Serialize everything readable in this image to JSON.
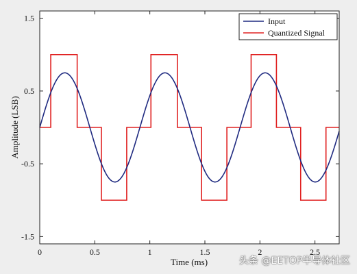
{
  "chart_data": {
    "type": "line",
    "title": "",
    "xlabel": "Time (ms)",
    "ylabel": "Amplitude (LSB)",
    "xlim": [
      0,
      2.72
    ],
    "ylim": [
      -1.6,
      1.6
    ],
    "x_ticks": [
      0,
      0.5,
      1,
      1.5,
      2,
      2.5
    ],
    "x_tick_labels": [
      "0",
      "0.5",
      "1",
      "1.5",
      "2",
      "2.5"
    ],
    "y_ticks": [
      1.5,
      0.5,
      -0.5,
      -1.5
    ],
    "y_tick_labels": [
      "1.5",
      "0.5",
      "-0.5",
      "-1.5"
    ],
    "grid": false,
    "legend_position": "top-right",
    "series": [
      {
        "name": "Input",
        "color": "#1f2a80",
        "kind": "sine",
        "amplitude": 0.75,
        "offset": 0,
        "period_ms": 0.91,
        "x": [
          0,
          0.1,
          0.2,
          0.23,
          0.35,
          0.45,
          0.55,
          0.68,
          0.8,
          0.91,
          1.0,
          1.14,
          1.25,
          1.36,
          1.59,
          1.82,
          2.05,
          2.27,
          2.5,
          2.72
        ],
        "y": [
          0,
          0.48,
          0.74,
          0.75,
          0.39,
          -0.17,
          -0.61,
          -0.75,
          -0.48,
          0,
          0.47,
          0.75,
          0.43,
          0,
          -0.75,
          0,
          0.75,
          0,
          -0.75,
          0
        ]
      },
      {
        "name": "Quantized Signal",
        "color": "#e02020",
        "kind": "step",
        "x": [
          0,
          0.1,
          0.1,
          0.34,
          0.34,
          0.56,
          0.56,
          0.79,
          0.79,
          1.01,
          1.01,
          1.25,
          1.25,
          1.47,
          1.47,
          1.7,
          1.7,
          1.92,
          1.92,
          2.15,
          2.15,
          2.37,
          2.37,
          2.6,
          2.6,
          2.72
        ],
        "y": [
          0,
          0,
          1,
          1,
          0,
          0,
          -1,
          -1,
          0,
          0,
          1,
          1,
          0,
          0,
          -1,
          -1,
          0,
          0,
          1,
          1,
          0,
          0,
          -1,
          -1,
          0,
          0
        ]
      }
    ]
  },
  "watermark": "头条 @EETOP半导体社区"
}
